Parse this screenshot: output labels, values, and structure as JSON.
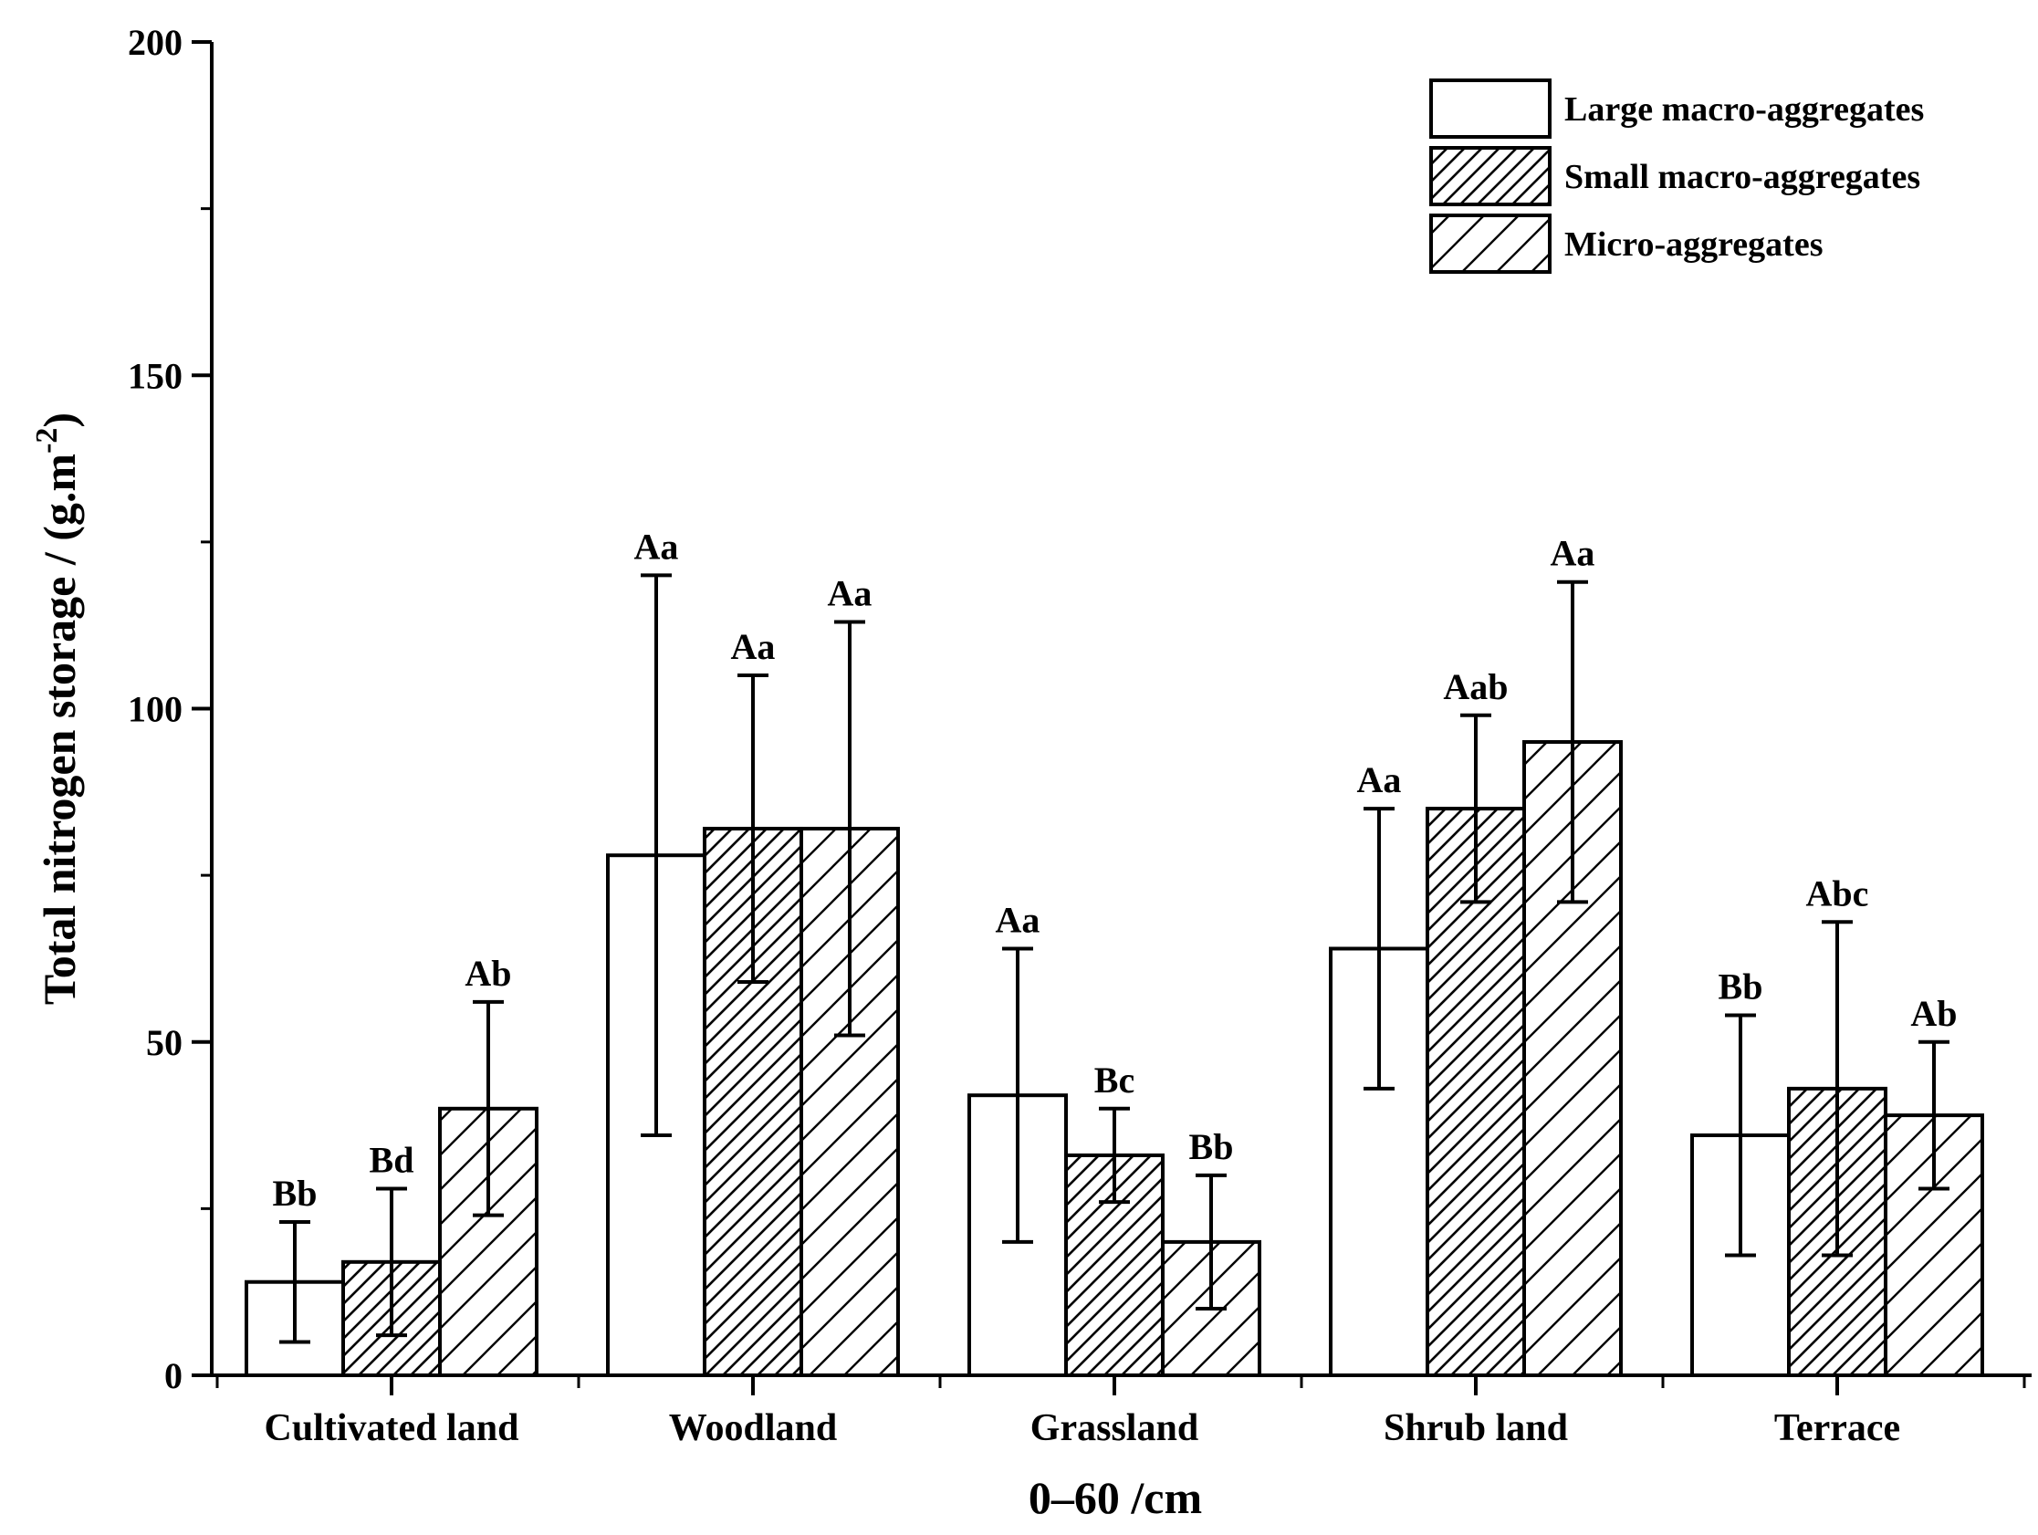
{
  "chart_data": {
    "type": "bar",
    "title": "",
    "xlabel": "0–60 /cm",
    "ylabel": {
      "main": "Total nitrogen storage / (g.m",
      "sup": "-2",
      "close": ")"
    },
    "ylim": [
      0,
      200
    ],
    "yticks": [
      0,
      50,
      100,
      150,
      200
    ],
    "grid": false,
    "legend_position": "top-right",
    "categories": [
      "Cultivated land",
      "Woodland",
      "Grassland",
      "Shrub land",
      "Terrace"
    ],
    "series": [
      {
        "name": "Large macro-aggregates",
        "pattern": "none",
        "values": [
          14,
          78,
          42,
          64,
          36
        ],
        "errors": [
          9,
          42,
          22,
          21,
          18
        ],
        "labels": [
          "Bb",
          "Aa",
          "Aa",
          "Aa",
          "Bb"
        ]
      },
      {
        "name": "Small macro-aggregates",
        "pattern": "dense-hatch",
        "values": [
          17,
          82,
          33,
          85,
          43
        ],
        "errors": [
          11,
          23,
          7,
          14,
          25
        ],
        "labels": [
          "Bd",
          "Aa",
          "Bc",
          "Aab",
          "Abc"
        ]
      },
      {
        "name": "Micro-aggregates",
        "pattern": "sparse-hatch",
        "values": [
          40,
          82,
          20,
          95,
          39
        ],
        "errors": [
          16,
          31,
          10,
          24,
          11
        ],
        "labels": [
          "Ab",
          "Aa",
          "Bb",
          "Aa",
          "Ab"
        ]
      }
    ],
    "colors": {
      "stroke": "#000000",
      "fill": "#ffffff"
    }
  }
}
